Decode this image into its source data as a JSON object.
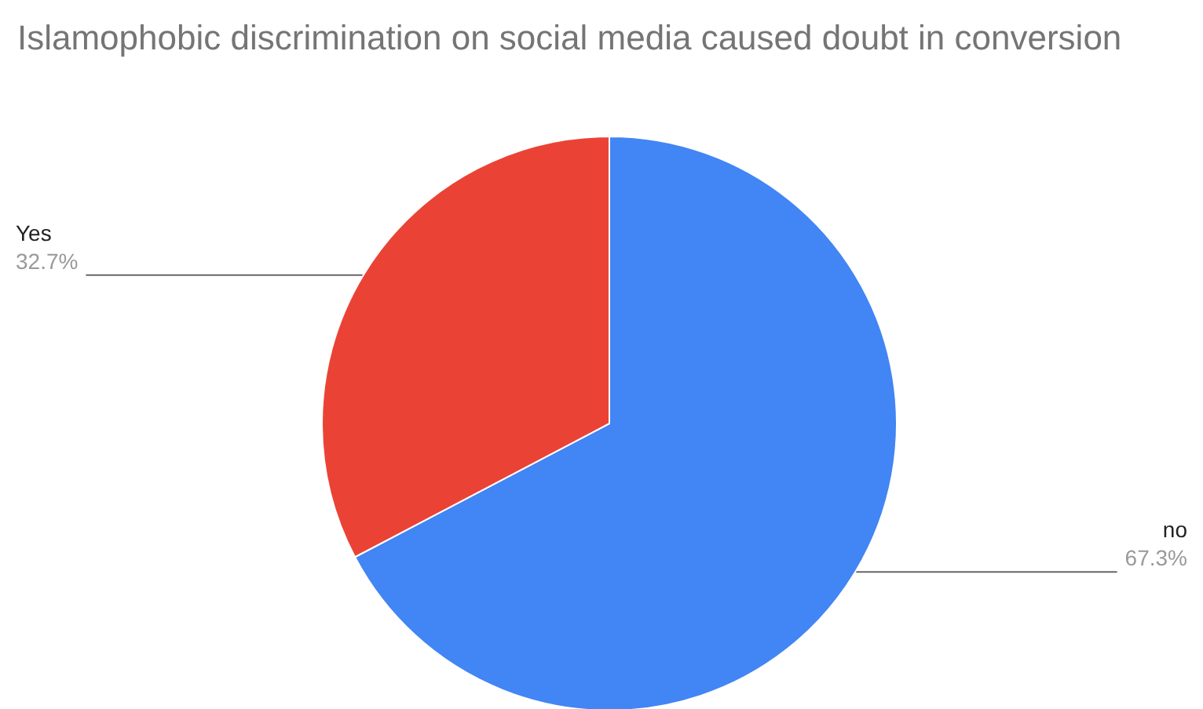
{
  "chart_data": {
    "type": "pie",
    "title": "Islamophobic discrimination on social media caused doubt in conversion",
    "categories": [
      "no",
      "Yes"
    ],
    "values": [
      67.3,
      32.7
    ],
    "value_labels": [
      "67.3%",
      "32.7%"
    ],
    "colors": [
      "#4285f4",
      "#ea4335"
    ],
    "legend": false
  }
}
